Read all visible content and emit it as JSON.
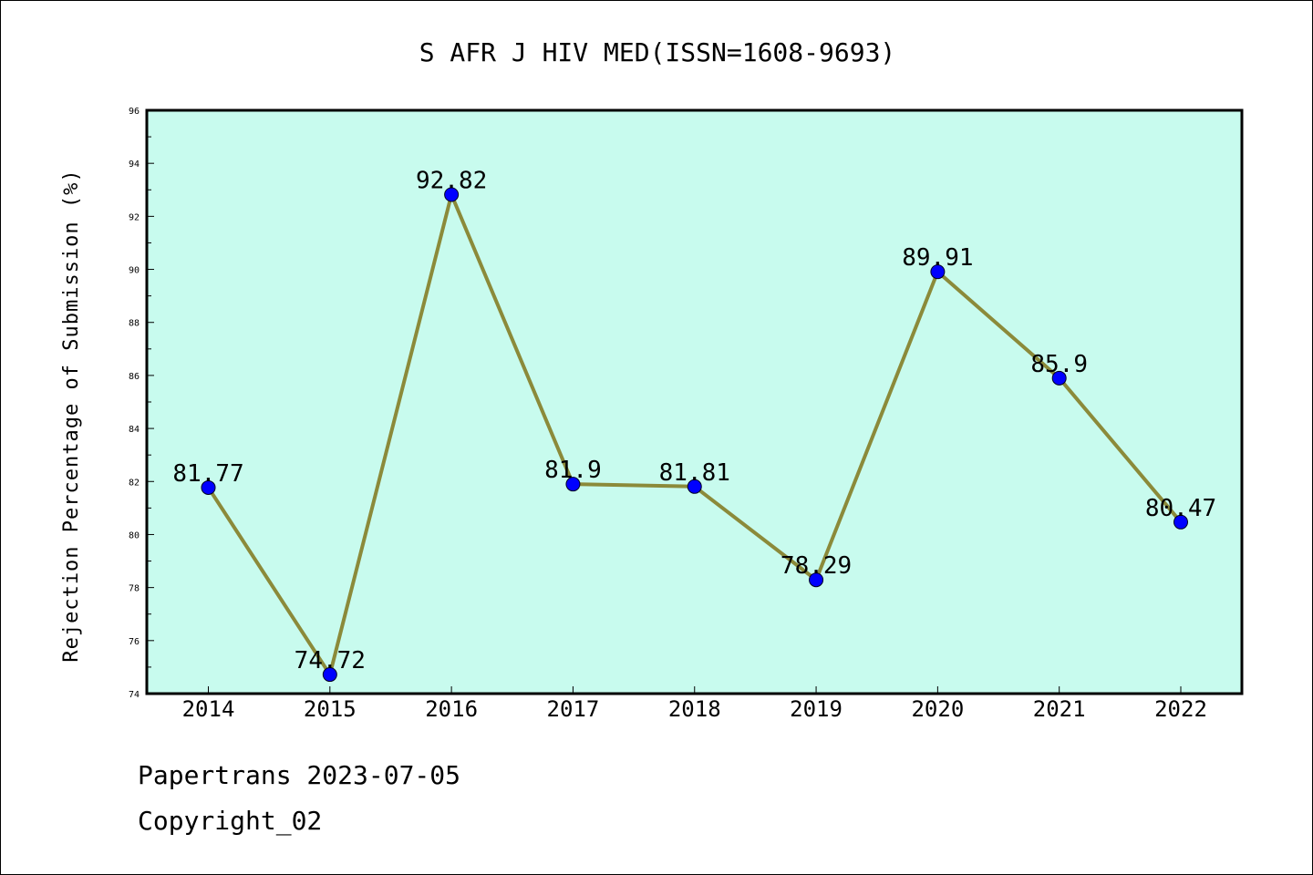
{
  "chart_data": {
    "type": "line",
    "title": "S AFR J HIV MED(ISSN=1608-9693)",
    "ylabel": "Rejection Percentage of Submission (%)",
    "xlabel": "",
    "categories": [
      "2014",
      "2015",
      "2016",
      "2017",
      "2018",
      "2019",
      "2020",
      "2021",
      "2022"
    ],
    "values": [
      81.77,
      74.72,
      92.82,
      81.9,
      81.81,
      78.29,
      89.91,
      85.9,
      80.47
    ],
    "data_labels": [
      "81.77",
      "74.72",
      "92.82",
      "81.9",
      "81.81",
      "78.29",
      "89.91",
      "85.9",
      "80.47"
    ],
    "ylim": [
      74,
      96
    ],
    "yticks": [
      "74",
      "76",
      "78",
      "80",
      "82",
      "84",
      "86",
      "88",
      "90",
      "92",
      "94",
      "96"
    ],
    "grid": false,
    "legend": "none",
    "colors": {
      "plot_background": "#c8fbee",
      "line": "#8b8a3a",
      "marker": "#0000ff"
    }
  },
  "footer": {
    "line1": "Papertrans 2023-07-05",
    "line2": "Copyright_02"
  }
}
